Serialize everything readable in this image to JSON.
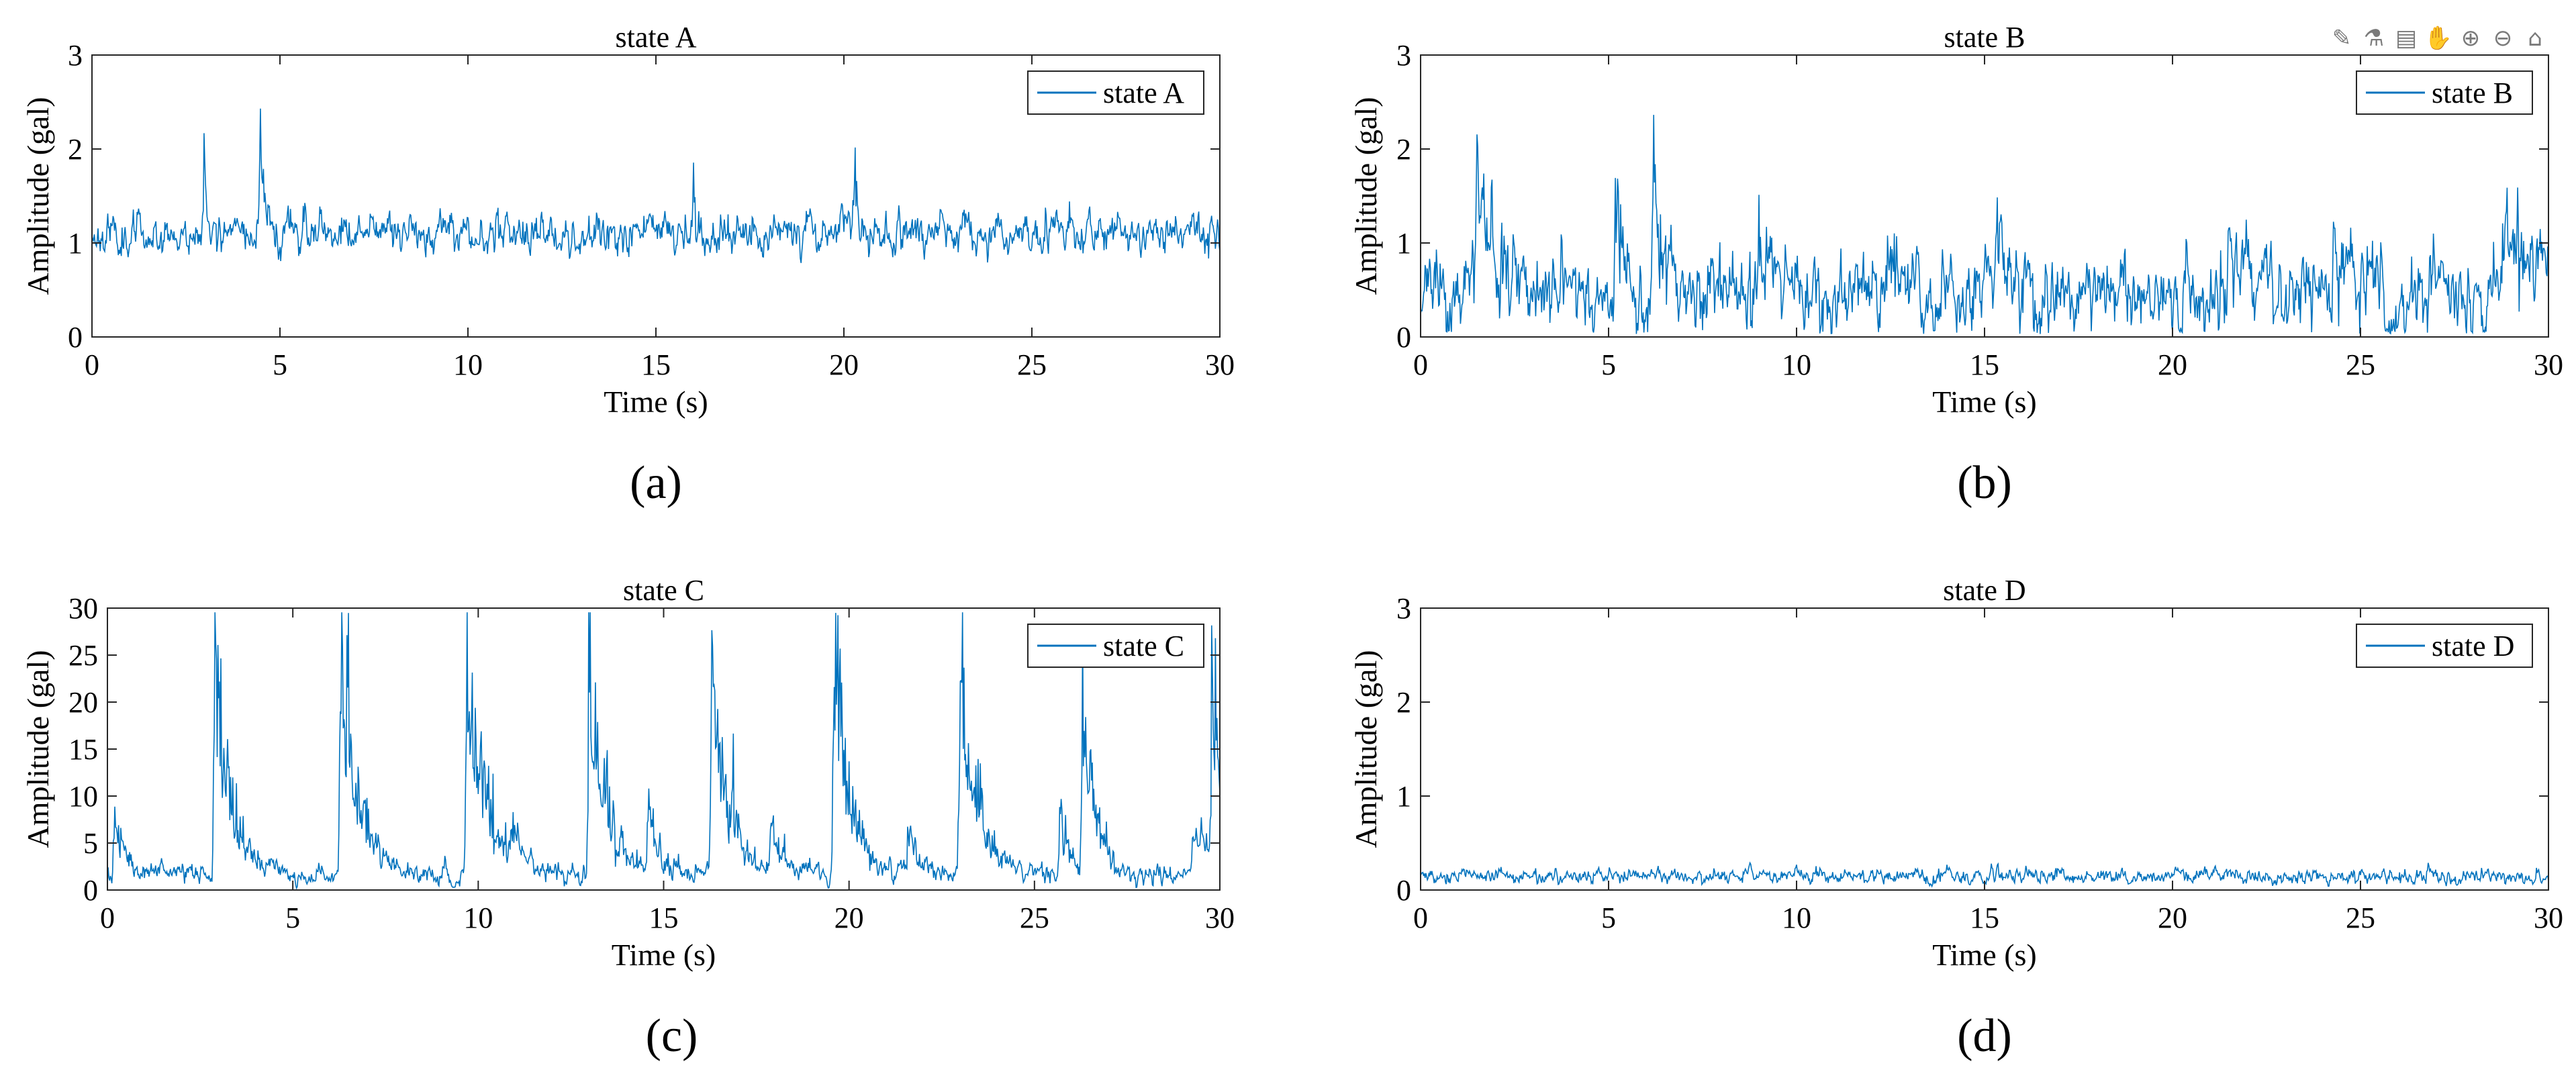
{
  "toolbar": {
    "icons": [
      {
        "name": "edit-brush-icon",
        "glyph": "✎"
      },
      {
        "name": "data-tips-icon",
        "glyph": "⚗"
      },
      {
        "name": "legend-icon",
        "glyph": "▤"
      },
      {
        "name": "pan-hand-icon",
        "glyph": "✋"
      },
      {
        "name": "zoom-in-icon",
        "glyph": "⊕"
      },
      {
        "name": "zoom-out-icon",
        "glyph": "⊖"
      },
      {
        "name": "home-icon",
        "glyph": "⌂"
      }
    ]
  },
  "chart_data": [
    {
      "id": "a",
      "type": "line",
      "panel_label": "(a)",
      "title": "state A",
      "xlabel": "Time (s)",
      "ylabel": "Amplitude (gal)",
      "xlim": [
        0,
        30
      ],
      "ylim": [
        0,
        3
      ],
      "xticks": [
        0,
        5,
        10,
        15,
        20,
        25,
        30
      ],
      "yticks": [
        0,
        1,
        2,
        3
      ],
      "grid": false,
      "legend": {
        "label": "state A",
        "position": "top-right"
      },
      "color": "#0072BD",
      "signal": {
        "base": 1.1,
        "noise": 0.16,
        "ymin": 0.7,
        "seed": 11
      },
      "spikes": [
        {
          "t": 3.0,
          "amp": 1.0,
          "w": 0.05
        },
        {
          "t": 4.5,
          "amp": 1.35,
          "w": 0.08
        },
        {
          "t": 16.0,
          "amp": 0.8,
          "w": 0.05
        },
        {
          "t": 20.3,
          "amp": 0.9,
          "w": 0.06
        }
      ]
    },
    {
      "id": "b",
      "type": "line",
      "panel_label": "(b)",
      "title": "state B",
      "xlabel": "Time (s)",
      "ylabel": "Amplitude (gal)",
      "xlim": [
        0,
        30
      ],
      "ylim": [
        0,
        3
      ],
      "xticks": [
        0,
        5,
        10,
        15,
        20,
        25,
        30
      ],
      "yticks": [
        0,
        1,
        2,
        3
      ],
      "grid": false,
      "legend": {
        "label": "state B",
        "position": "top-right"
      },
      "color": "#0072BD",
      "signal": {
        "base": 0.45,
        "noise": 0.32,
        "ymin": 0.05,
        "seed": 23
      },
      "spikes": [
        {
          "t": 1.5,
          "amp": 1.1,
          "w": 0.6
        },
        {
          "t": 5.2,
          "amp": 1.0,
          "w": 0.3
        },
        {
          "t": 6.2,
          "amp": 1.3,
          "w": 0.4
        },
        {
          "t": 9.0,
          "amp": 0.8,
          "w": 0.5
        },
        {
          "t": 12.5,
          "amp": 0.7,
          "w": 0.3
        },
        {
          "t": 15.3,
          "amp": 0.7,
          "w": 0.4
        },
        {
          "t": 21.5,
          "amp": 0.8,
          "w": 0.4
        },
        {
          "t": 24.3,
          "amp": 0.8,
          "w": 0.4
        },
        {
          "t": 28.8,
          "amp": 0.9,
          "w": 0.8
        }
      ]
    },
    {
      "id": "c",
      "type": "line",
      "panel_label": "(c)",
      "title": "state C",
      "xlabel": "Time (s)",
      "ylabel": "Amplitude (gal)",
      "xlim": [
        0,
        30
      ],
      "ylim": [
        0,
        30
      ],
      "xticks": [
        0,
        5,
        10,
        15,
        20,
        25,
        30
      ],
      "yticks": [
        0,
        5,
        10,
        15,
        20,
        25,
        30
      ],
      "grid": false,
      "legend": {
        "label": "state C",
        "position": "top-right"
      },
      "color": "#0072BD",
      "signal": {
        "base": 1.5,
        "noise": 0.9,
        "ymin": 0.3,
        "seed": 37
      },
      "spikes": [
        {
          "t": 0.2,
          "amp": 6.0,
          "w": 0.3
        },
        {
          "t": 2.9,
          "amp": 24.0,
          "w": 0.45
        },
        {
          "t": 6.3,
          "amp": 26.0,
          "w": 0.45
        },
        {
          "t": 9.7,
          "amp": 26.5,
          "w": 0.45
        },
        {
          "t": 10.9,
          "amp": 6.0,
          "w": 0.3
        },
        {
          "t": 13.0,
          "amp": 24.5,
          "w": 0.45
        },
        {
          "t": 14.6,
          "amp": 7.0,
          "w": 0.3
        },
        {
          "t": 16.3,
          "amp": 23.0,
          "w": 0.45
        },
        {
          "t": 17.9,
          "amp": 6.0,
          "w": 0.3
        },
        {
          "t": 19.6,
          "amp": 24.5,
          "w": 0.45
        },
        {
          "t": 21.6,
          "amp": 5.0,
          "w": 0.3
        },
        {
          "t": 23.0,
          "amp": 24.5,
          "w": 0.45
        },
        {
          "t": 25.7,
          "amp": 7.0,
          "w": 0.3
        },
        {
          "t": 26.3,
          "amp": 22.0,
          "w": 0.35
        },
        {
          "t": 29.3,
          "amp": 7.0,
          "w": 0.4
        },
        {
          "t": 29.8,
          "amp": 22.0,
          "w": 0.3
        }
      ]
    },
    {
      "id": "d",
      "type": "line",
      "panel_label": "(d)",
      "title": "state D",
      "xlabel": "Time (s)",
      "ylabel": "Amplitude (gal)",
      "xlim": [
        0,
        30
      ],
      "ylim": [
        0,
        3
      ],
      "xticks": [
        0,
        5,
        10,
        15,
        20,
        25,
        30
      ],
      "yticks": [
        0,
        1,
        2,
        3
      ],
      "grid": false,
      "legend": {
        "label": "state D",
        "position": "top-right"
      },
      "color": "#0072BD",
      "signal": {
        "base": 0.15,
        "noise": 0.06,
        "ymin": 0.05,
        "seed": 53
      },
      "spikes": []
    }
  ]
}
